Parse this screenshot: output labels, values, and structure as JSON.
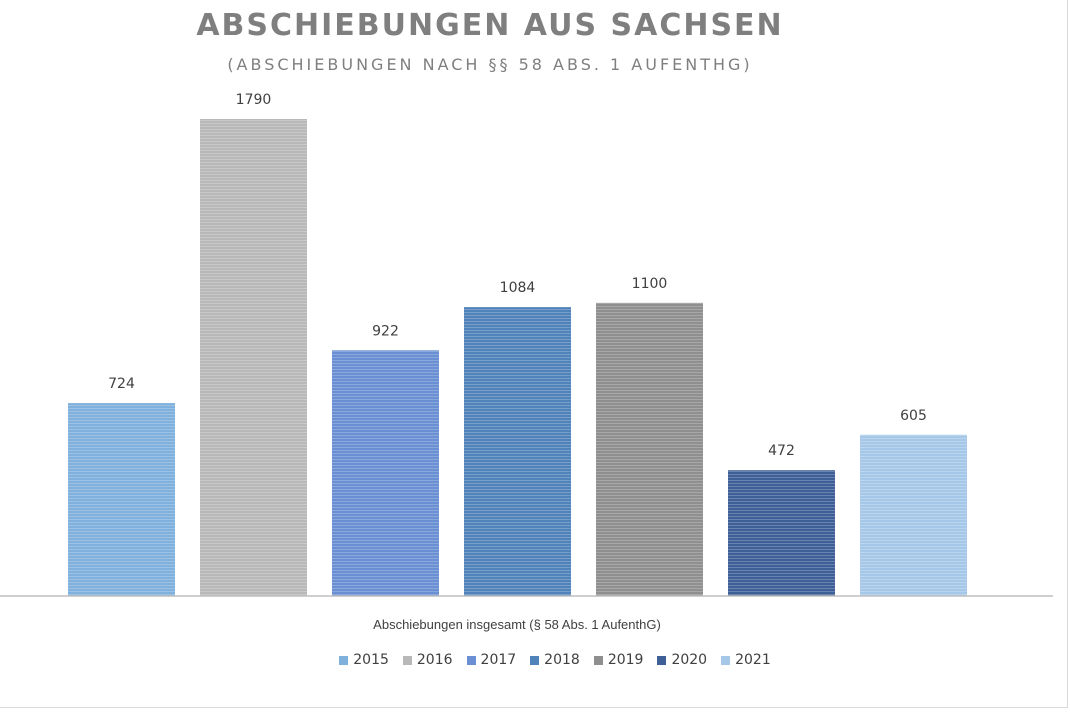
{
  "chart_data": {
    "type": "bar",
    "title": "ABSCHIEBUNGEN AUS SACHSEN",
    "subtitle": "(ABSCHIEBUNGEN NACH §§ 58 ABS. 1 AUFENTHG)",
    "categories": [
      "Abschiebungen insgesamt (§ 58 Abs. 1 AufenthG)"
    ],
    "category_label": "Abschiebungen insgesamt (§ 58 Abs. 1 AufenthG)",
    "series": [
      {
        "name": "2015",
        "values": [
          724
        ],
        "color": "#7fb1dc"
      },
      {
        "name": "2016",
        "values": [
          1790
        ],
        "color": "#b8b8b8"
      },
      {
        "name": "2017",
        "values": [
          922
        ],
        "color": "#6a8fd2"
      },
      {
        "name": "2018",
        "values": [
          1084
        ],
        "color": "#4f83b9"
      },
      {
        "name": "2019",
        "values": [
          1100
        ],
        "color": "#8f8f8f"
      },
      {
        "name": "2020",
        "values": [
          472
        ],
        "color": "#3f5f97"
      },
      {
        "name": "2021",
        "values": [
          605
        ],
        "color": "#a6c8e8"
      }
    ],
    "ylim": [
      0,
      1790
    ],
    "grid": false,
    "legend_position": "bottom",
    "data_labels": true
  }
}
